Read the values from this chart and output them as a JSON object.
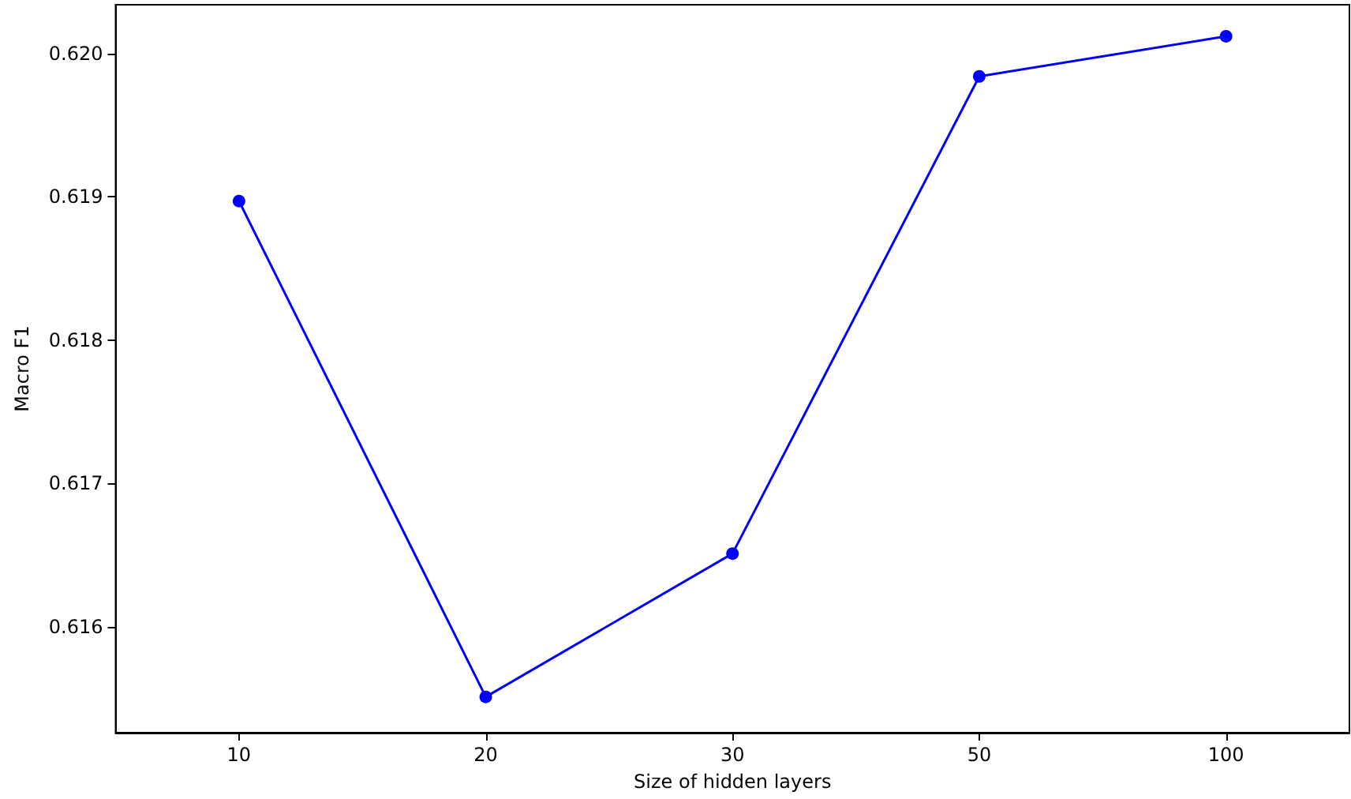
{
  "chart_data": {
    "type": "line",
    "xlabel": "Size of hidden layers",
    "ylabel": "Macro F1",
    "categories": [
      "10",
      "20",
      "30",
      "50",
      "100"
    ],
    "series": [
      {
        "color": "#0000ff",
        "values": [
          0.61897,
          0.61551,
          0.61651,
          0.61984,
          0.62012
        ]
      }
    ],
    "ylim": [
      0.61526,
      0.62034
    ],
    "yticks": [
      0.616,
      0.617,
      0.618,
      0.619,
      {
        "value": 0.62,
        "label": "0.620"
      }
    ],
    "marker": "circle",
    "line_style": "solid",
    "grid": false
  }
}
